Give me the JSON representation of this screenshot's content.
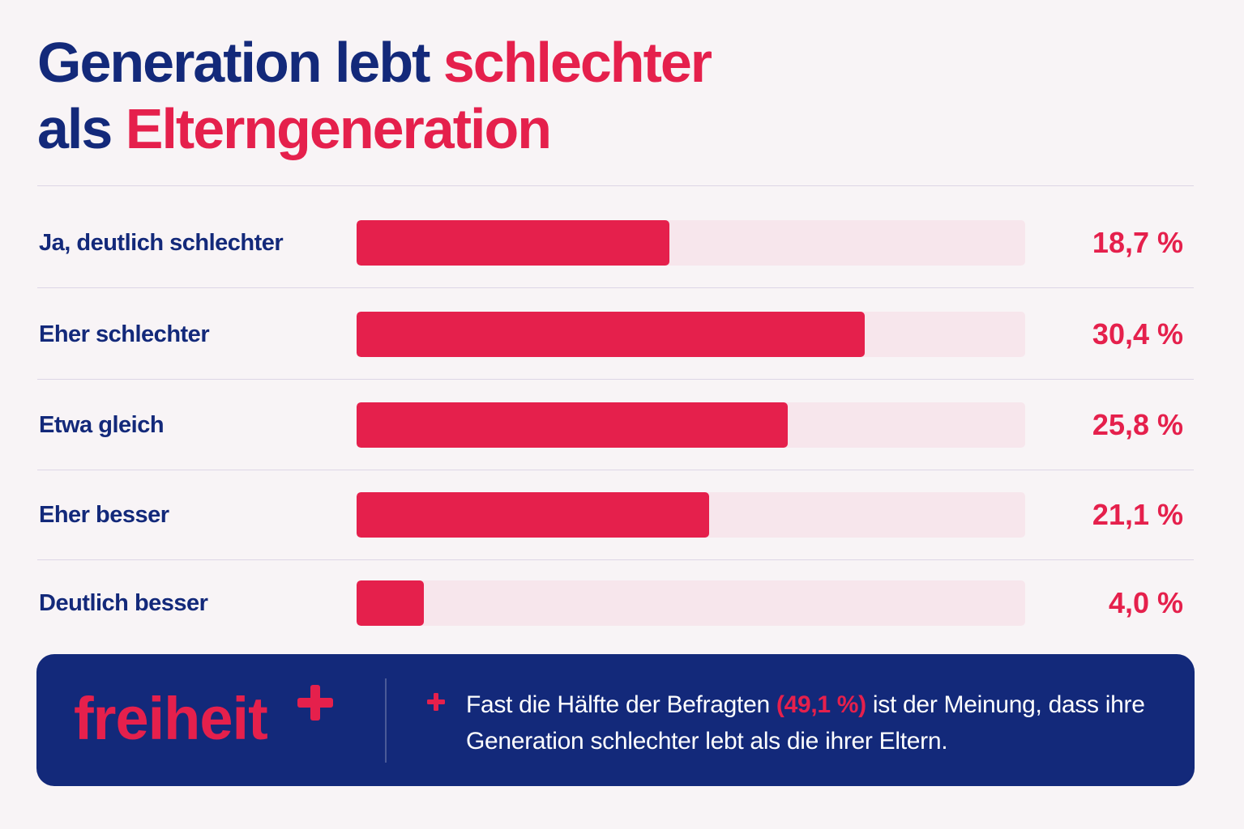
{
  "title": {
    "part1": "Generation lebt ",
    "part2": "schlechter",
    "part3": "als ",
    "part4": "Elterngeneration"
  },
  "chart_data": {
    "type": "bar",
    "orientation": "horizontal",
    "categories": [
      "Ja, deutlich schlechter",
      "Eher schlechter",
      "Etwa gleich",
      "Eher besser",
      "Deutlich besser"
    ],
    "values": [
      18.7,
      30.4,
      25.8,
      21.1,
      4.0
    ],
    "value_labels": [
      "18,7 %",
      "30,4 %",
      "25,8 %",
      "21,1 %",
      "4,0 %"
    ],
    "xlim": [
      0,
      40
    ],
    "grid": false,
    "colors": {
      "bar": "#e5204c",
      "track": "#f7e6ec"
    }
  },
  "footer": {
    "logo": "freiheit",
    "logo_icon": "plus-icon",
    "note_icon": "plus-icon",
    "note_part1": "Fast die Hälfte der Befragten ",
    "note_highlight": "(49,1 %)",
    "note_part2": " ist der Meinung, dass ihre Generation schlechter lebt als die ihrer Eltern."
  },
  "colors": {
    "navy": "#13297a",
    "accent": "#e5204c",
    "background": "#f8f4f6"
  }
}
